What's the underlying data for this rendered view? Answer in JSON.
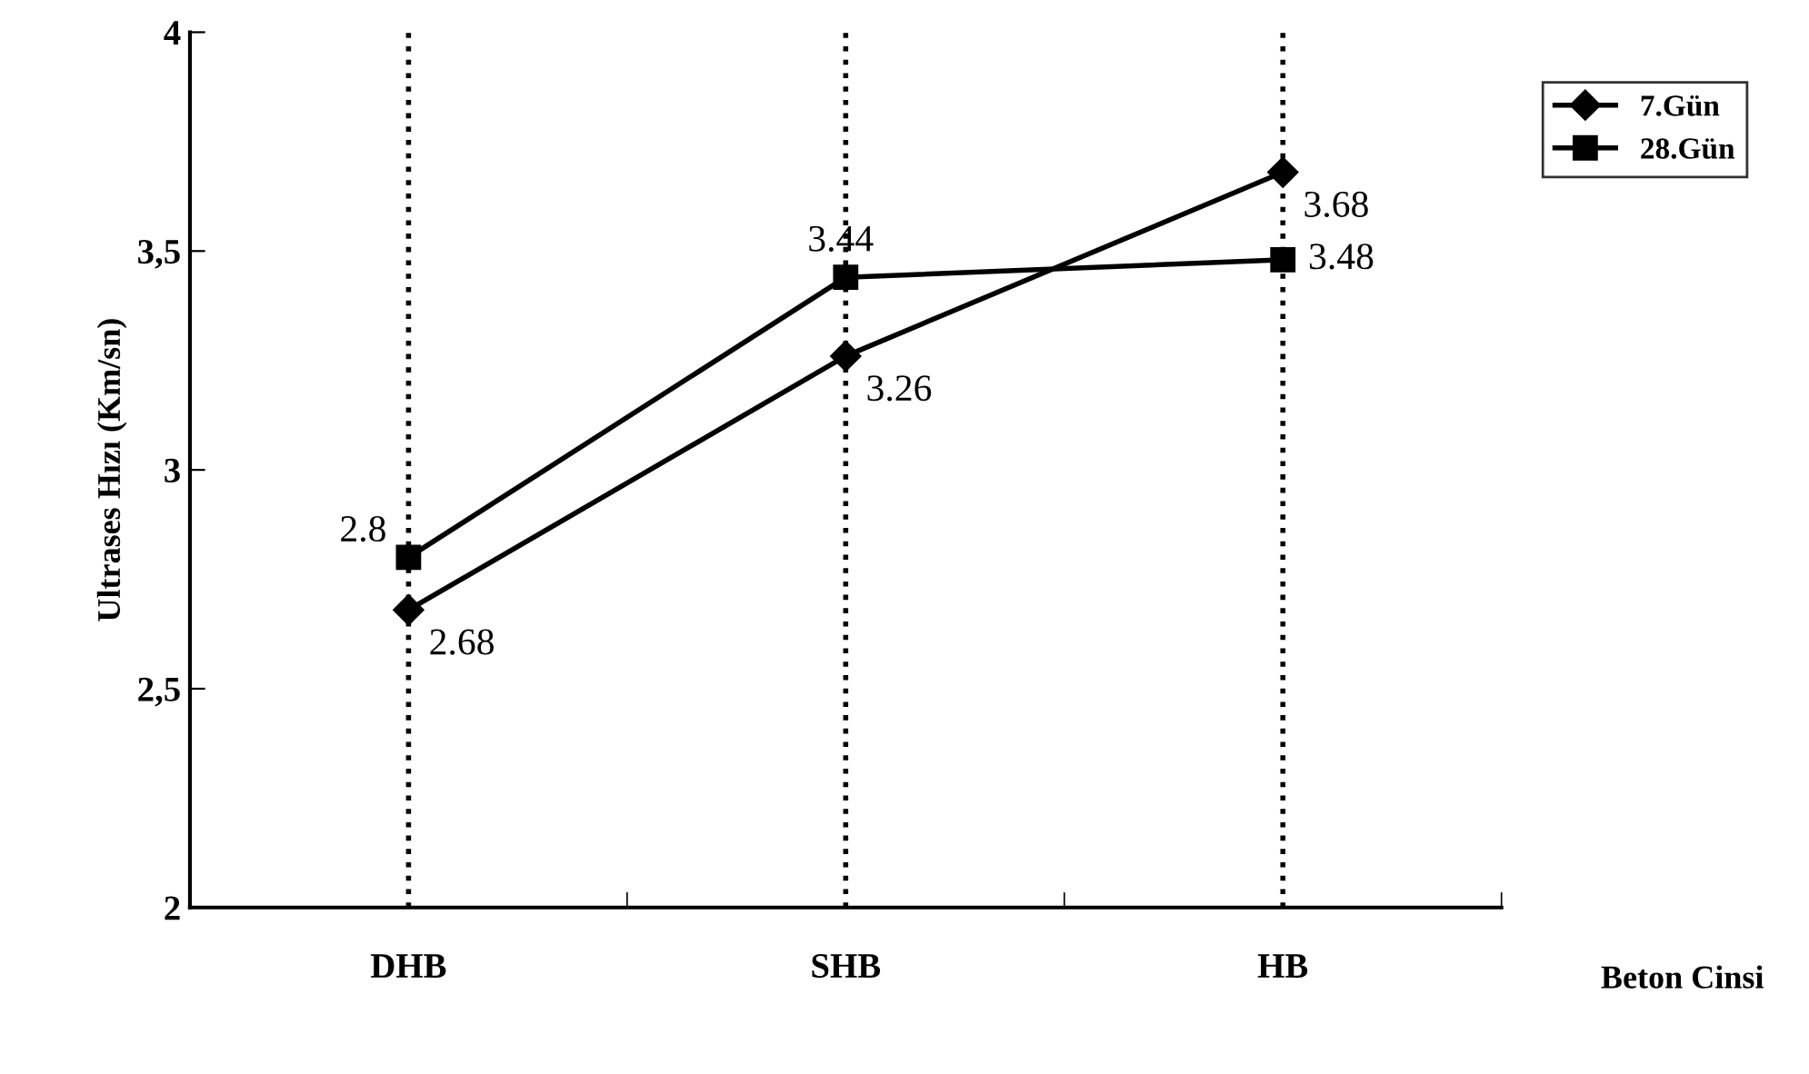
{
  "chart_data": {
    "type": "line",
    "xlabel": "Beton Cinsi",
    "ylabel": "Ultrases Hızı (Km/sn)",
    "categories": [
      "DHB",
      "SHB",
      "HB"
    ],
    "series": [
      {
        "name": "7.Gün",
        "color": "#000000",
        "marker": "diamond",
        "values": [
          2.68,
          3.26,
          3.68
        ]
      },
      {
        "name": "28.Gün",
        "color": "#000000",
        "marker": "square",
        "values": [
          2.8,
          3.44,
          3.48
        ]
      }
    ],
    "ylim": [
      2,
      4
    ],
    "yticks": [
      2,
      {
        "value": 2.5,
        "label": "2,5"
      },
      3,
      {
        "value": 3.5,
        "label": "3,5"
      },
      4
    ],
    "grid": "x",
    "legend": "top right",
    "data_labels": true,
    "line_style": "solid"
  }
}
